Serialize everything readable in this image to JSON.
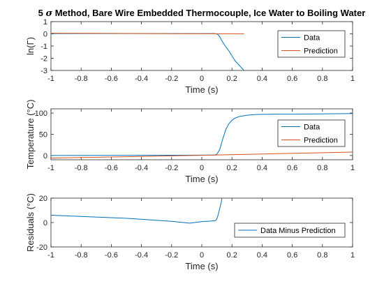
{
  "figure": {
    "title_prefix": "5 ",
    "title_symbol": "σ",
    "title_suffix": " Method, Bare Wire Embedded Thermocouple, Ice Water to Boiling Water"
  },
  "chart_data": [
    {
      "type": "line",
      "xlabel": "Time (s)",
      "ylabel": "ln(Γ)",
      "xlim": [
        -1,
        1
      ],
      "ylim": [
        -3,
        1
      ],
      "xticks": [
        "-1",
        "-0.8",
        "-0.6",
        "-0.4",
        "-0.2",
        "0",
        "0.2",
        "0.4",
        "0.6",
        "0.8",
        "1"
      ],
      "yticks": [
        "-3",
        "-2",
        "-1",
        "0",
        "1"
      ],
      "ytick_values": [
        -3,
        -2,
        -1,
        0,
        1
      ],
      "legend_position": "top-right",
      "grid": false,
      "series": [
        {
          "name": "Data",
          "color": "#0072BD",
          "x": [
            -1,
            0.08,
            0.1,
            0.11,
            0.12,
            0.13,
            0.15,
            0.18,
            0.2,
            0.22,
            0.25,
            0.28
          ],
          "y": [
            0.02,
            0.02,
            0.0,
            -0.1,
            -0.25,
            -0.5,
            -0.9,
            -1.4,
            -1.8,
            -2.2,
            -2.6,
            -3.0
          ]
        },
        {
          "name": "Prediction",
          "color": "#D95319",
          "x": [
            -1,
            0.28
          ],
          "y": [
            0.05,
            0.0
          ]
        }
      ]
    },
    {
      "type": "line",
      "xlabel": "Time (s)",
      "ylabel": "Temperature (°C)",
      "xlim": [
        -1,
        1
      ],
      "ylim": [
        -10,
        110
      ],
      "xticks": [
        "-1",
        "-0.8",
        "-0.6",
        "-0.4",
        "-0.2",
        "0",
        "0.2",
        "0.4",
        "0.6",
        "0.8",
        "1"
      ],
      "yticks": [
        "0",
        "50",
        "100"
      ],
      "ytick_values": [
        0,
        50,
        100
      ],
      "legend_position": "top-right",
      "grid": false,
      "series": [
        {
          "name": "Data",
          "color": "#0072BD",
          "x": [
            -1,
            0.08,
            0.1,
            0.12,
            0.14,
            0.16,
            0.18,
            0.2,
            0.22,
            0.25,
            0.3,
            0.35,
            0.4,
            0.5,
            0.6,
            0.8,
            1.0
          ],
          "y": [
            0,
            1,
            3,
            15,
            40,
            62,
            75,
            83,
            88,
            92,
            95,
            96.5,
            97,
            97.5,
            97.5,
            98,
            99
          ]
        },
        {
          "name": "Prediction",
          "color": "#D95319",
          "x": [
            -1,
            0,
            1
          ],
          "y": [
            -6,
            0.5,
            8
          ]
        }
      ]
    },
    {
      "type": "line",
      "xlabel": "Time (s)",
      "ylabel": "Residuals (°C)",
      "xlim": [
        -1,
        1
      ],
      "ylim": [
        -20,
        20
      ],
      "xticks": [
        "-1",
        "-0.8",
        "-0.6",
        "-0.4",
        "-0.2",
        "0",
        "0.2",
        "0.4",
        "0.6",
        "0.8",
        "1"
      ],
      "yticks": [
        "-20",
        "0",
        "20"
      ],
      "ytick_values": [
        -20,
        0,
        20
      ],
      "legend_position": "right",
      "grid": false,
      "series": [
        {
          "name": "Data Minus Prediction",
          "color": "#0072BD",
          "x": [
            -1,
            -0.5,
            -0.2,
            -0.08,
            0,
            0.06,
            0.09,
            0.1,
            0.11,
            0.12,
            0.13,
            0.135
          ],
          "y": [
            6,
            3.5,
            1,
            -0.5,
            0.8,
            1.2,
            1.5,
            3,
            7,
            12,
            17,
            22
          ]
        }
      ]
    }
  ]
}
